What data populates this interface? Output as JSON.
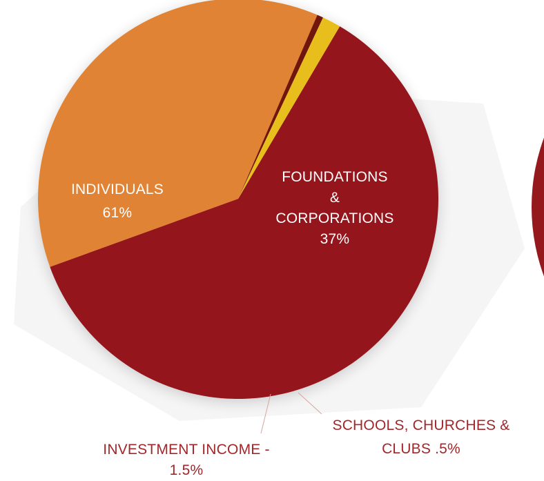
{
  "chart_data": {
    "type": "pie",
    "slices": [
      {
        "label": "INDIVIDUALS",
        "value": 61,
        "display": "61%",
        "color": "#94181c"
      },
      {
        "label": "FOUNDATIONS & CORPORATIONS",
        "value": 37,
        "display": "37%",
        "color": "#e08334"
      },
      {
        "label": "SCHOOLS, CHURCHES & CLUBS",
        "value": 0.5,
        "display": ".5%",
        "color": "#6f1410"
      },
      {
        "label": "INVESTMENT INCOME",
        "value": 1.5,
        "display": "1.5%",
        "color": "#e8be1d"
      }
    ]
  },
  "labels": {
    "individuals": {
      "line1": "INDIVIDUALS",
      "line2": "61%"
    },
    "foundations": {
      "line1": "FOUNDATIONS",
      "line2": "&",
      "line3": "CORPORATIONS",
      "line4": "37%"
    },
    "investment": {
      "text": "INVESTMENT INCOME - 1.5%"
    },
    "schools": {
      "line1": "SCHOOLS, CHURCHES &",
      "line2": "CLUBS .5%"
    }
  },
  "colors": {
    "label_on_slice": "#ffffff",
    "label_outside": "#a2262a",
    "second_pie_partial": "#94181c",
    "leader_line": "#d9a39f"
  }
}
